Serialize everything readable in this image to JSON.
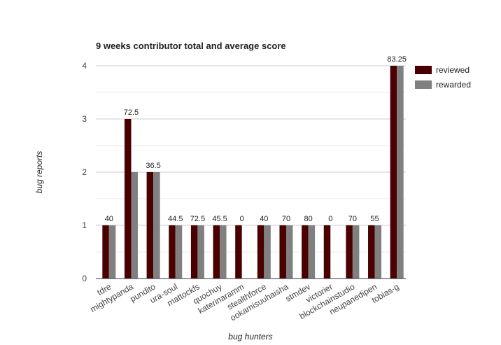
{
  "chart_data": {
    "type": "bar",
    "title": "9 weeks contributor total and average score",
    "xlabel": "bug hunters",
    "ylabel": "bug reports",
    "ylim": [
      0,
      4
    ],
    "yticks": [
      0,
      1,
      2,
      3,
      4
    ],
    "grid": true,
    "legend_position": "right",
    "categories": [
      "tdre",
      "mightypanda",
      "pundito",
      "ura-soul",
      "mattockfs",
      "quochuy",
      "katerinaramm",
      "stealthforce",
      "ookamisuuhaisha",
      "stmdev",
      "victorier",
      "blockchainstudio",
      "neupanedipen",
      "tobias-g"
    ],
    "series": [
      {
        "name": "reviewed",
        "color": "#4a0000",
        "values": [
          1,
          3,
          2,
          1,
          1,
          1,
          1,
          1,
          1,
          1,
          1,
          1,
          1,
          4
        ]
      },
      {
        "name": "rewarded",
        "color": "#808080",
        "values": [
          1,
          2,
          2,
          1,
          1,
          1,
          0,
          1,
          1,
          1,
          0,
          1,
          1,
          4
        ]
      }
    ],
    "annotations": [
      "40",
      "72.5",
      "36.5",
      "44.5",
      "72.5",
      "45.5",
      "0",
      "40",
      "70",
      "80",
      "0",
      "70",
      "55",
      "83.25"
    ]
  }
}
